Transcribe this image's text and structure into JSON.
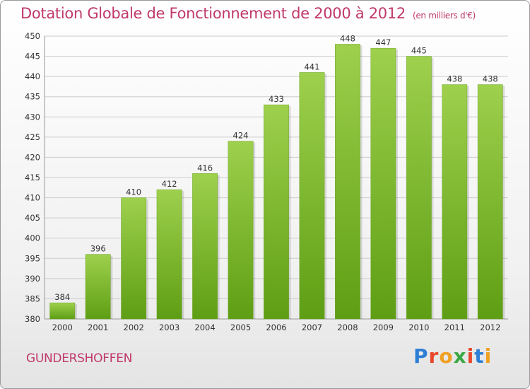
{
  "header": {
    "title": "Dotation Globale de Fonctionnement de 2000 à 2012",
    "subtitle": "(en milliers d'€)"
  },
  "footer": {
    "city": "GUNDERSHOFFEN",
    "logo": "Proxiti",
    "logo_colors": [
      "#2e7fd6",
      "#e8462a",
      "#f0a020",
      "#3aa845",
      "#e8462a",
      "#2e7fd6",
      "#f0a020"
    ]
  },
  "chart_data": {
    "type": "bar",
    "title": "Dotation Globale de Fonctionnement de 2000 à 2012",
    "subtitle": "(en milliers d'€)",
    "categories": [
      "2000",
      "2001",
      "2002",
      "2003",
      "2004",
      "2005",
      "2006",
      "2007",
      "2008",
      "2009",
      "2010",
      "2011",
      "2012"
    ],
    "values": [
      384,
      396,
      410,
      412,
      416,
      424,
      433,
      441,
      448,
      447,
      445,
      438,
      438
    ],
    "ylim": [
      380,
      450
    ],
    "yticks": [
      380,
      385,
      390,
      395,
      400,
      405,
      410,
      415,
      420,
      425,
      430,
      435,
      440,
      445,
      450
    ],
    "grid": true,
    "bar_color_top": "#9ed04d",
    "bar_color_bottom": "#5e9e14",
    "grid_color": "#cccccc"
  }
}
